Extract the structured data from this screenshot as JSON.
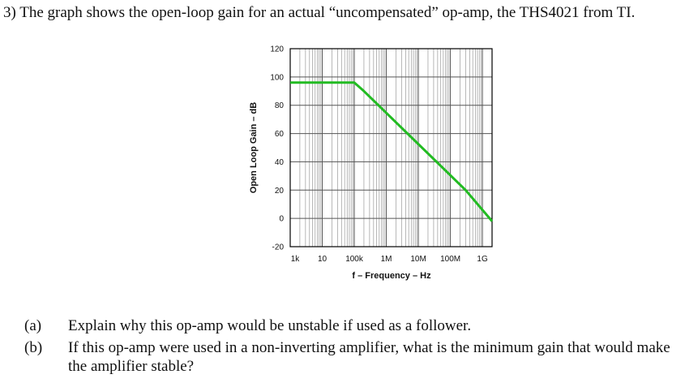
{
  "question": {
    "text": "3) The graph shows the open-loop gain for an actual “uncompensated” op-amp, the THS4021 from TI."
  },
  "chart_data": {
    "type": "line",
    "xlabel": "f – Frequency – Hz",
    "ylabel": "Open Loop Gain – dB",
    "x_tick_labels": [
      "1k",
      "10",
      "100k",
      "1M",
      "10M",
      "100M",
      "1G"
    ],
    "y_ticks": [
      120,
      100,
      80,
      60,
      40,
      20,
      0,
      -20
    ],
    "ylim": [
      -20,
      120
    ],
    "x_log_range_hz": [
      1000,
      2000000000
    ],
    "grid": true,
    "series": [
      {
        "color": "#22bb22",
        "points": [
          {
            "f": 1000,
            "db": 96
          },
          {
            "f": 100000,
            "db": 96
          },
          {
            "f": 200000,
            "db": 90
          },
          {
            "f": 300000000,
            "db": 20
          },
          {
            "f": 2000000000,
            "db": -2
          }
        ]
      }
    ]
  },
  "parts": [
    {
      "marker": "(a)",
      "text": "Explain why this op-amp would be unstable if used as a follower."
    },
    {
      "marker": "(b)",
      "text": "If this op-amp were used in a non-inverting amplifier, what is the minimum gain that would make the amplifier stable?"
    }
  ]
}
